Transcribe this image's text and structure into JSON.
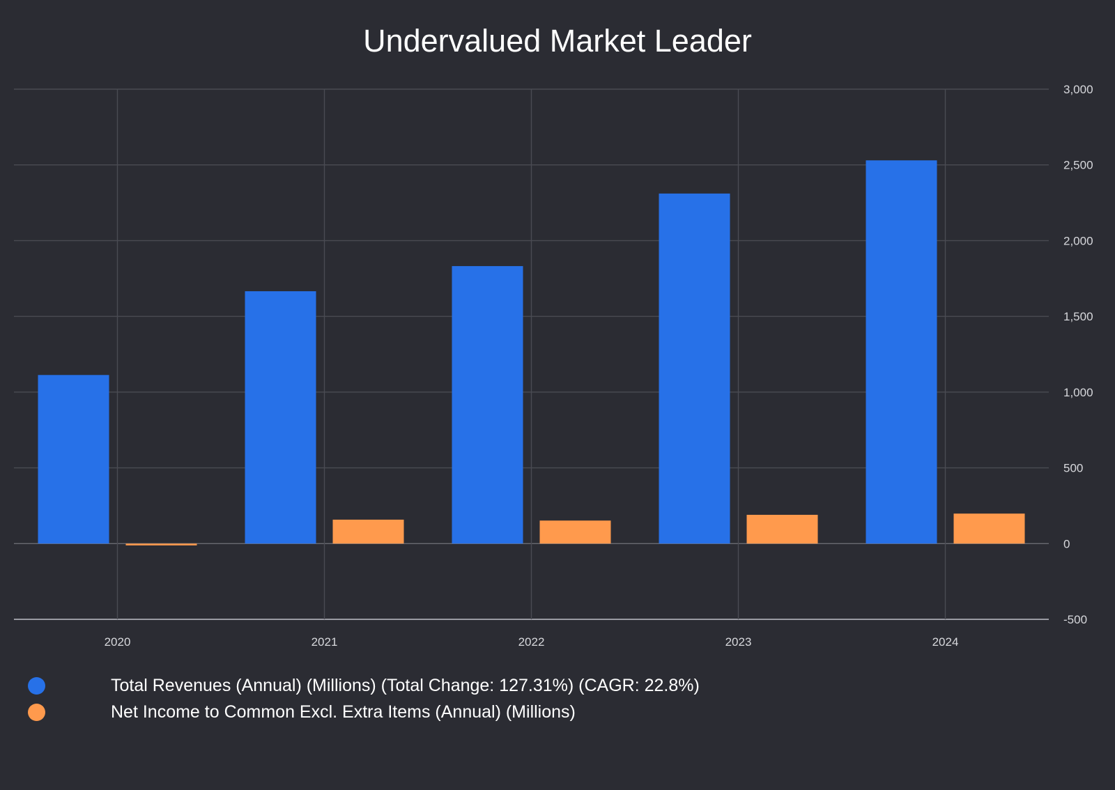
{
  "chart_data": {
    "type": "bar",
    "title": "Undervalued Market Leader",
    "categories": [
      "2020",
      "2021",
      "2022",
      "2023",
      "2024"
    ],
    "series": [
      {
        "name": "Total Revenues (Annual) (Millions) (Total Change: 127.31%) (CAGR: 22.8%)",
        "color": "#2771e8",
        "values": [
          1113,
          1666,
          1832,
          2311,
          2530
        ]
      },
      {
        "name": "Net Income to Common Excl. Extra Items (Annual) (Millions)",
        "color": "#ff9a4d",
        "values": [
          -12,
          158,
          152,
          190,
          198
        ]
      }
    ],
    "y_axis": {
      "position": "right",
      "ylim": [
        -500,
        3000
      ],
      "ticks": [
        3000,
        2500,
        2000,
        1500,
        1000,
        500,
        0,
        -500
      ],
      "tick_labels": [
        "3,000",
        "2,500",
        "2,000",
        "1,500",
        "1,000",
        "500",
        "0",
        "-500"
      ]
    },
    "grid": true,
    "legend_placement": "bottom-left",
    "xlabel": "",
    "ylabel": ""
  }
}
